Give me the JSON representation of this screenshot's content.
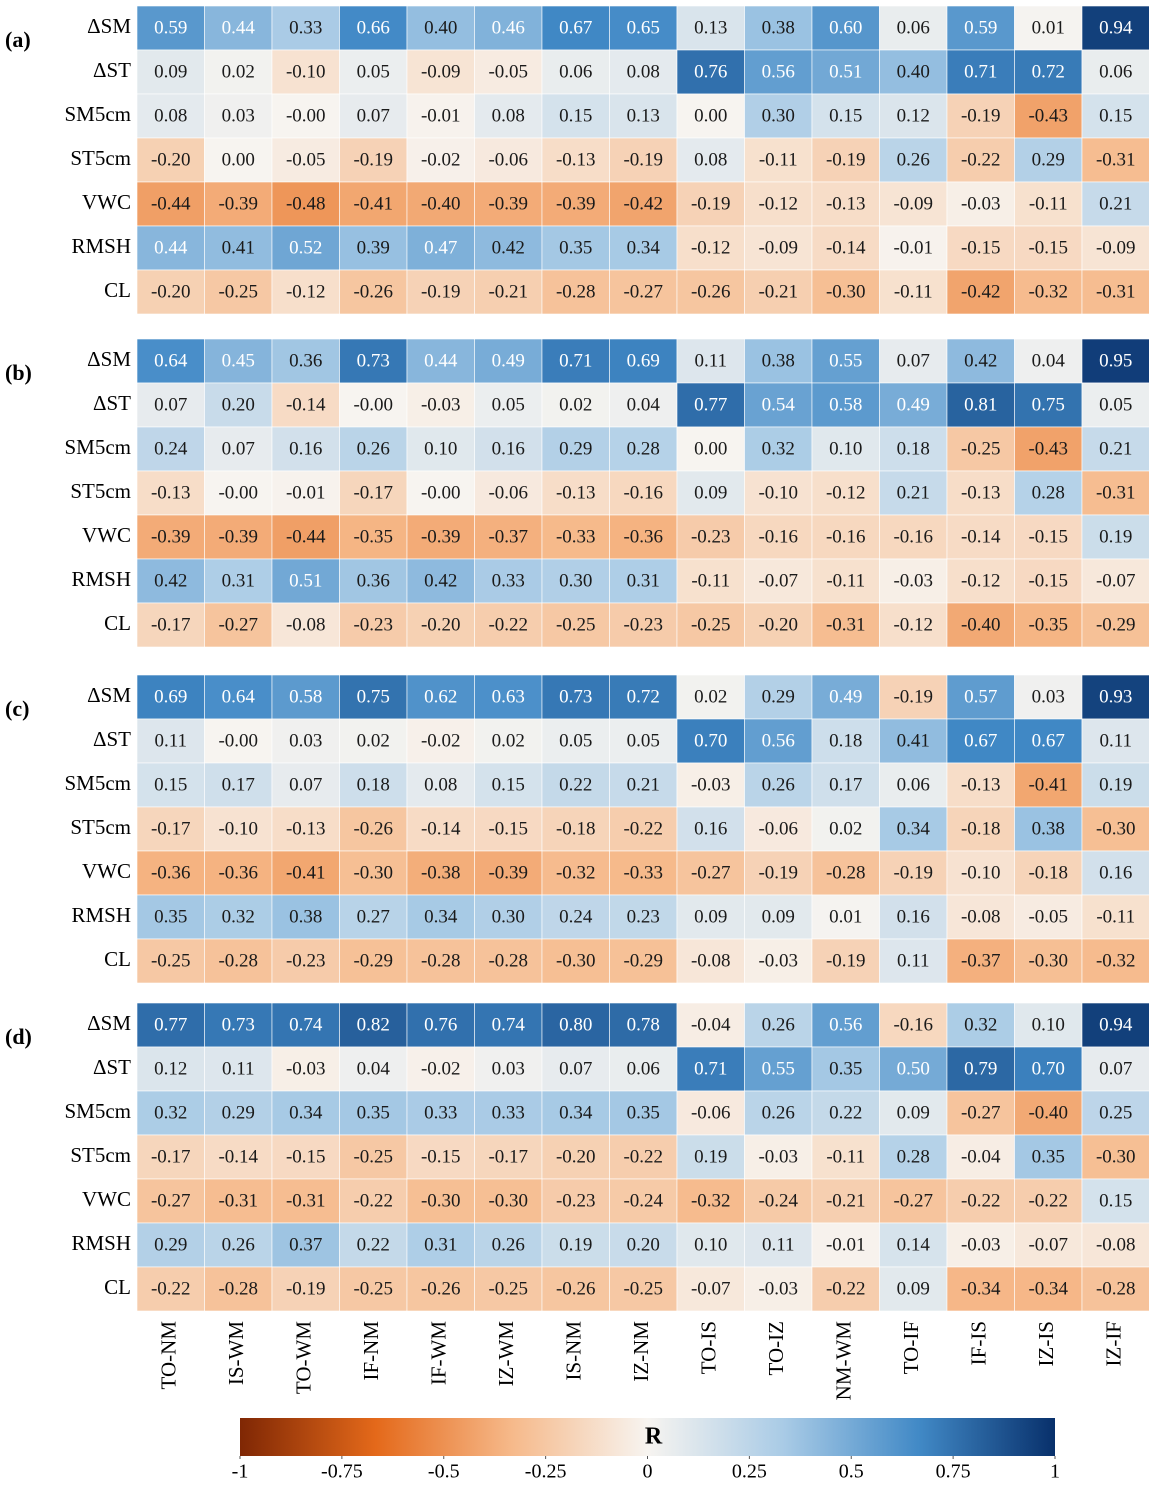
{
  "chart_data": [
    {
      "type": "heatmap",
      "label": "(a)",
      "rows": [
        "ΔSM",
        "ΔST",
        "SM5cm",
        "ST5cm",
        "VWC",
        "RMSH",
        "CL"
      ],
      "values": [
        [
          0.59,
          0.44,
          0.33,
          0.66,
          0.4,
          0.46,
          0.67,
          0.65,
          0.13,
          0.38,
          0.6,
          0.06,
          0.59,
          0.01,
          0.94
        ],
        [
          0.09,
          0.02,
          -0.1,
          0.05,
          -0.09,
          -0.05,
          0.06,
          0.08,
          0.76,
          0.56,
          0.51,
          0.4,
          0.71,
          0.72,
          0.06
        ],
        [
          0.08,
          0.03,
          -0.0,
          0.07,
          -0.01,
          0.08,
          0.15,
          0.13,
          0.0,
          0.3,
          0.15,
          0.12,
          -0.19,
          -0.43,
          0.15
        ],
        [
          -0.2,
          0.0,
          -0.05,
          -0.19,
          -0.02,
          -0.06,
          -0.13,
          -0.19,
          0.08,
          -0.11,
          -0.19,
          0.26,
          -0.22,
          0.29,
          -0.31
        ],
        [
          -0.44,
          -0.39,
          -0.48,
          -0.41,
          -0.4,
          -0.39,
          -0.39,
          -0.42,
          -0.19,
          -0.12,
          -0.13,
          -0.09,
          -0.03,
          -0.11,
          0.21
        ],
        [
          0.44,
          0.41,
          0.52,
          0.39,
          0.47,
          0.42,
          0.35,
          0.34,
          -0.12,
          -0.09,
          -0.14,
          -0.01,
          -0.15,
          -0.15,
          -0.09
        ],
        [
          -0.2,
          -0.25,
          -0.12,
          -0.26,
          -0.19,
          -0.21,
          -0.28,
          -0.27,
          -0.26,
          -0.21,
          -0.3,
          -0.11,
          -0.42,
          -0.32,
          -0.31
        ]
      ],
      "value_labels": [
        [
          "0.59",
          "0.44",
          "0.33",
          "0.66",
          "0.40",
          "0.46",
          "0.67",
          "0.65",
          "0.13",
          "0.38",
          "0.60",
          "0.06",
          "0.59",
          "0.01",
          "0.94"
        ],
        [
          "0.09",
          "0.02",
          "-0.10",
          "0.05",
          "-0.09",
          "-0.05",
          "0.06",
          "0.08",
          "0.76",
          "0.56",
          "0.51",
          "0.40",
          "0.71",
          "0.72",
          "0.06"
        ],
        [
          "0.08",
          "0.03",
          "-0.00",
          "0.07",
          "-0.01",
          "0.08",
          "0.15",
          "0.13",
          "0.00",
          "0.30",
          "0.15",
          "0.12",
          "-0.19",
          "-0.43",
          "0.15"
        ],
        [
          "-0.20",
          "0.00",
          "-0.05",
          "-0.19",
          "-0.02",
          "-0.06",
          "-0.13",
          "-0.19",
          "0.08",
          "-0.11",
          "-0.19",
          "0.26",
          "-0.22",
          "0.29",
          "-0.31"
        ],
        [
          "-0.44",
          "-0.39",
          "-0.48",
          "-0.41",
          "-0.40",
          "-0.39",
          "-0.39",
          "-0.42",
          "-0.19",
          "-0.12",
          "-0.13",
          "-0.09",
          "-0.03",
          "-0.11",
          "0.21"
        ],
        [
          "0.44",
          "0.41",
          "0.52",
          "0.39",
          "0.47",
          "0.42",
          "0.35",
          "0.34",
          "-0.12",
          "-0.09",
          "-0.14",
          "-0.01",
          "-0.15",
          "-0.15",
          "-0.09"
        ],
        [
          "-0.20",
          "-0.25",
          "-0.12",
          "-0.26",
          "-0.19",
          "-0.21",
          "-0.28",
          "-0.27",
          "-0.26",
          "-0.21",
          "-0.30",
          "-0.11",
          "-0.42",
          "-0.32",
          "-0.31"
        ]
      ]
    },
    {
      "type": "heatmap",
      "label": "(b)",
      "rows": [
        "ΔSM",
        "ΔST",
        "SM5cm",
        "ST5cm",
        "VWC",
        "RMSH",
        "CL"
      ],
      "values": [
        [
          0.64,
          0.45,
          0.36,
          0.73,
          0.44,
          0.49,
          0.71,
          0.69,
          0.11,
          0.38,
          0.55,
          0.07,
          0.42,
          0.04,
          0.95
        ],
        [
          0.07,
          0.2,
          -0.14,
          -0.0,
          -0.03,
          0.05,
          0.02,
          0.04,
          0.77,
          0.54,
          0.58,
          0.49,
          0.81,
          0.75,
          0.05
        ],
        [
          0.24,
          0.07,
          0.16,
          0.26,
          0.1,
          0.16,
          0.29,
          0.28,
          0.0,
          0.32,
          0.1,
          0.18,
          -0.25,
          -0.43,
          0.21
        ],
        [
          -0.13,
          -0.0,
          -0.01,
          -0.17,
          -0.0,
          -0.06,
          -0.13,
          -0.16,
          0.09,
          -0.1,
          -0.12,
          0.21,
          -0.13,
          0.28,
          -0.31
        ],
        [
          -0.39,
          -0.39,
          -0.44,
          -0.35,
          -0.39,
          -0.37,
          -0.33,
          -0.36,
          -0.23,
          -0.16,
          -0.16,
          -0.16,
          -0.14,
          -0.15,
          0.19
        ],
        [
          0.42,
          0.31,
          0.51,
          0.36,
          0.42,
          0.33,
          0.3,
          0.31,
          -0.11,
          -0.07,
          -0.11,
          -0.03,
          -0.12,
          -0.15,
          -0.07
        ],
        [
          -0.17,
          -0.27,
          -0.08,
          -0.23,
          -0.2,
          -0.22,
          -0.25,
          -0.23,
          -0.25,
          -0.2,
          -0.31,
          -0.12,
          -0.4,
          -0.35,
          -0.29
        ]
      ],
      "value_labels": [
        [
          "0.64",
          "0.45",
          "0.36",
          "0.73",
          "0.44",
          "0.49",
          "0.71",
          "0.69",
          "0.11",
          "0.38",
          "0.55",
          "0.07",
          "0.42",
          "0.04",
          "0.95"
        ],
        [
          "0.07",
          "0.20",
          "-0.14",
          "-0.00",
          "-0.03",
          "0.05",
          "0.02",
          "0.04",
          "0.77",
          "0.54",
          "0.58",
          "0.49",
          "0.81",
          "0.75",
          "0.05"
        ],
        [
          "0.24",
          "0.07",
          "0.16",
          "0.26",
          "0.10",
          "0.16",
          "0.29",
          "0.28",
          "0.00",
          "0.32",
          "0.10",
          "0.18",
          "-0.25",
          "-0.43",
          "0.21"
        ],
        [
          "-0.13",
          "-0.00",
          "-0.01",
          "-0.17",
          "-0.00",
          "-0.06",
          "-0.13",
          "-0.16",
          "0.09",
          "-0.10",
          "-0.12",
          "0.21",
          "-0.13",
          "0.28",
          "-0.31"
        ],
        [
          "-0.39",
          "-0.39",
          "-0.44",
          "-0.35",
          "-0.39",
          "-0.37",
          "-0.33",
          "-0.36",
          "-0.23",
          "-0.16",
          "-0.16",
          "-0.16",
          "-0.14",
          "-0.15",
          "0.19"
        ],
        [
          "0.42",
          "0.31",
          "0.51",
          "0.36",
          "0.42",
          "0.33",
          "0.30",
          "0.31",
          "-0.11",
          "-0.07",
          "-0.11",
          "-0.03",
          "-0.12",
          "-0.15",
          "-0.07"
        ],
        [
          "-0.17",
          "-0.27",
          "-0.08",
          "-0.23",
          "-0.20",
          "-0.22",
          "-0.25",
          "-0.23",
          "-0.25",
          "-0.20",
          "-0.31",
          "-0.12",
          "-0.40",
          "-0.35",
          "-0.29"
        ]
      ]
    },
    {
      "type": "heatmap",
      "label": "(c)",
      "rows": [
        "ΔSM",
        "ΔST",
        "SM5cm",
        "ST5cm",
        "VWC",
        "RMSH",
        "CL"
      ],
      "values": [
        [
          0.69,
          0.64,
          0.58,
          0.75,
          0.62,
          0.63,
          0.73,
          0.72,
          0.02,
          0.29,
          0.49,
          -0.19,
          0.57,
          0.03,
          0.93
        ],
        [
          0.11,
          -0.0,
          0.03,
          0.02,
          -0.02,
          0.02,
          0.05,
          0.05,
          0.7,
          0.56,
          0.18,
          0.41,
          0.67,
          0.67,
          0.11
        ],
        [
          0.15,
          0.17,
          0.07,
          0.18,
          0.08,
          0.15,
          0.22,
          0.21,
          -0.03,
          0.26,
          0.17,
          0.06,
          -0.13,
          -0.41,
          0.19
        ],
        [
          -0.17,
          -0.1,
          -0.13,
          -0.26,
          -0.14,
          -0.15,
          -0.18,
          -0.22,
          0.16,
          -0.06,
          0.02,
          0.34,
          -0.18,
          0.38,
          -0.3
        ],
        [
          -0.36,
          -0.36,
          -0.41,
          -0.3,
          -0.38,
          -0.39,
          -0.32,
          -0.33,
          -0.27,
          -0.19,
          -0.28,
          -0.19,
          -0.1,
          -0.18,
          0.16
        ],
        [
          0.35,
          0.32,
          0.38,
          0.27,
          0.34,
          0.3,
          0.24,
          0.23,
          0.09,
          0.09,
          0.01,
          0.16,
          -0.08,
          -0.05,
          -0.11
        ],
        [
          -0.25,
          -0.28,
          -0.23,
          -0.29,
          -0.28,
          -0.28,
          -0.3,
          -0.29,
          -0.08,
          -0.03,
          -0.19,
          0.11,
          -0.37,
          -0.3,
          -0.32
        ]
      ],
      "value_labels": [
        [
          "0.69",
          "0.64",
          "0.58",
          "0.75",
          "0.62",
          "0.63",
          "0.73",
          "0.72",
          "0.02",
          "0.29",
          "0.49",
          "-0.19",
          "0.57",
          "0.03",
          "0.93"
        ],
        [
          "0.11",
          "-0.00",
          "0.03",
          "0.02",
          "-0.02",
          "0.02",
          "0.05",
          "0.05",
          "0.70",
          "0.56",
          "0.18",
          "0.41",
          "0.67",
          "0.67",
          "0.11"
        ],
        [
          "0.15",
          "0.17",
          "0.07",
          "0.18",
          "0.08",
          "0.15",
          "0.22",
          "0.21",
          "-0.03",
          "0.26",
          "0.17",
          "0.06",
          "-0.13",
          "-0.41",
          "0.19"
        ],
        [
          "-0.17",
          "-0.10",
          "-0.13",
          "-0.26",
          "-0.14",
          "-0.15",
          "-0.18",
          "-0.22",
          "0.16",
          "-0.06",
          "0.02",
          "0.34",
          "-0.18",
          "0.38",
          "-0.30"
        ],
        [
          "-0.36",
          "-0.36",
          "-0.41",
          "-0.30",
          "-0.38",
          "-0.39",
          "-0.32",
          "-0.33",
          "-0.27",
          "-0.19",
          "-0.28",
          "-0.19",
          "-0.10",
          "-0.18",
          "0.16"
        ],
        [
          "0.35",
          "0.32",
          "0.38",
          "0.27",
          "0.34",
          "0.30",
          "0.24",
          "0.23",
          "0.09",
          "0.09",
          "0.01",
          "0.16",
          "-0.08",
          "-0.05",
          "-0.11"
        ],
        [
          "-0.25",
          "-0.28",
          "-0.23",
          "-0.29",
          "-0.28",
          "-0.28",
          "-0.30",
          "-0.29",
          "-0.08",
          "-0.03",
          "-0.19",
          "0.11",
          "-0.37",
          "-0.30",
          "-0.32"
        ]
      ]
    },
    {
      "type": "heatmap",
      "label": "(d)",
      "rows": [
        "ΔSM",
        "ΔST",
        "SM5cm",
        "ST5cm",
        "VWC",
        "RMSH",
        "CL"
      ],
      "categories": [
        "TO-NM",
        "IS-WM",
        "TO-WM",
        "IF-NM",
        "IF-WM",
        "IZ-WM",
        "IS-NM",
        "IZ-NM",
        "TO-IS",
        "TO-IZ",
        "NM-WM",
        "TO-IF",
        "IF-IS",
        "IZ-IS",
        "IZ-IF"
      ],
      "values": [
        [
          0.77,
          0.73,
          0.74,
          0.82,
          0.76,
          0.74,
          0.8,
          0.78,
          -0.04,
          0.26,
          0.56,
          -0.16,
          0.32,
          0.1,
          0.94
        ],
        [
          0.12,
          0.11,
          -0.03,
          0.04,
          -0.02,
          0.03,
          0.07,
          0.06,
          0.71,
          0.55,
          0.35,
          0.5,
          0.79,
          0.7,
          0.07
        ],
        [
          0.32,
          0.29,
          0.34,
          0.35,
          0.33,
          0.33,
          0.34,
          0.35,
          -0.06,
          0.26,
          0.22,
          0.09,
          -0.27,
          -0.4,
          0.25
        ],
        [
          -0.17,
          -0.14,
          -0.15,
          -0.25,
          -0.15,
          -0.17,
          -0.2,
          -0.22,
          0.19,
          -0.03,
          -0.11,
          0.28,
          -0.04,
          0.35,
          -0.3
        ],
        [
          -0.27,
          -0.31,
          -0.31,
          -0.22,
          -0.3,
          -0.3,
          -0.23,
          -0.24,
          -0.32,
          -0.24,
          -0.21,
          -0.27,
          -0.22,
          -0.22,
          0.15
        ],
        [
          0.29,
          0.26,
          0.37,
          0.22,
          0.31,
          0.26,
          0.19,
          0.2,
          0.1,
          0.11,
          -0.01,
          0.14,
          -0.03,
          -0.07,
          -0.08
        ],
        [
          -0.22,
          -0.28,
          -0.19,
          -0.25,
          -0.26,
          -0.25,
          -0.26,
          -0.25,
          -0.07,
          -0.03,
          -0.22,
          0.09,
          -0.34,
          -0.34,
          -0.28
        ]
      ],
      "value_labels": [
        [
          "0.77",
          "0.73",
          "0.74",
          "0.82",
          "0.76",
          "0.74",
          "0.80",
          "0.78",
          "-0.04",
          "0.26",
          "0.56",
          "-0.16",
          "0.32",
          "0.10",
          "0.94"
        ],
        [
          "0.12",
          "0.11",
          "-0.03",
          "0.04",
          "-0.02",
          "0.03",
          "0.07",
          "0.06",
          "0.71",
          "0.55",
          "0.35",
          "0.50",
          "0.79",
          "0.70",
          "0.07"
        ],
        [
          "0.32",
          "0.29",
          "0.34",
          "0.35",
          "0.33",
          "0.33",
          "0.34",
          "0.35",
          "-0.06",
          "0.26",
          "0.22",
          "0.09",
          "-0.27",
          "-0.40",
          "0.25"
        ],
        [
          "-0.17",
          "-0.14",
          "-0.15",
          "-0.25",
          "-0.15",
          "-0.17",
          "-0.20",
          "-0.22",
          "0.19",
          "-0.03",
          "-0.11",
          "0.28",
          "-0.04",
          "0.35",
          "-0.30"
        ],
        [
          "-0.27",
          "-0.31",
          "-0.31",
          "-0.22",
          "-0.30",
          "-0.30",
          "-0.23",
          "-0.24",
          "-0.32",
          "-0.24",
          "-0.21",
          "-0.27",
          "-0.22",
          "-0.22",
          "0.15"
        ],
        [
          "0.29",
          "0.26",
          "0.37",
          "0.22",
          "0.31",
          "0.26",
          "0.19",
          "0.20",
          "0.10",
          "0.11",
          "-0.01",
          "0.14",
          "-0.03",
          "-0.07",
          "-0.08"
        ],
        [
          "-0.22",
          "-0.28",
          "-0.19",
          "-0.25",
          "-0.26",
          "-0.25",
          "-0.26",
          "-0.25",
          "-0.07",
          "-0.03",
          "-0.22",
          "0.09",
          "-0.34",
          "-0.34",
          "-0.28"
        ]
      ],
      "colorbar": {
        "title": "R",
        "lim": [
          -1,
          1
        ],
        "ticks": [
          -1,
          -0.75,
          -0.5,
          -0.25,
          0,
          0.25,
          0.5,
          0.75,
          1
        ],
        "colors": [
          "#7f2704",
          "#e4691a",
          "#f6b98a",
          "#f7f4f0",
          "#a9cbe6",
          "#4189c6",
          "#08306b"
        ]
      }
    }
  ]
}
